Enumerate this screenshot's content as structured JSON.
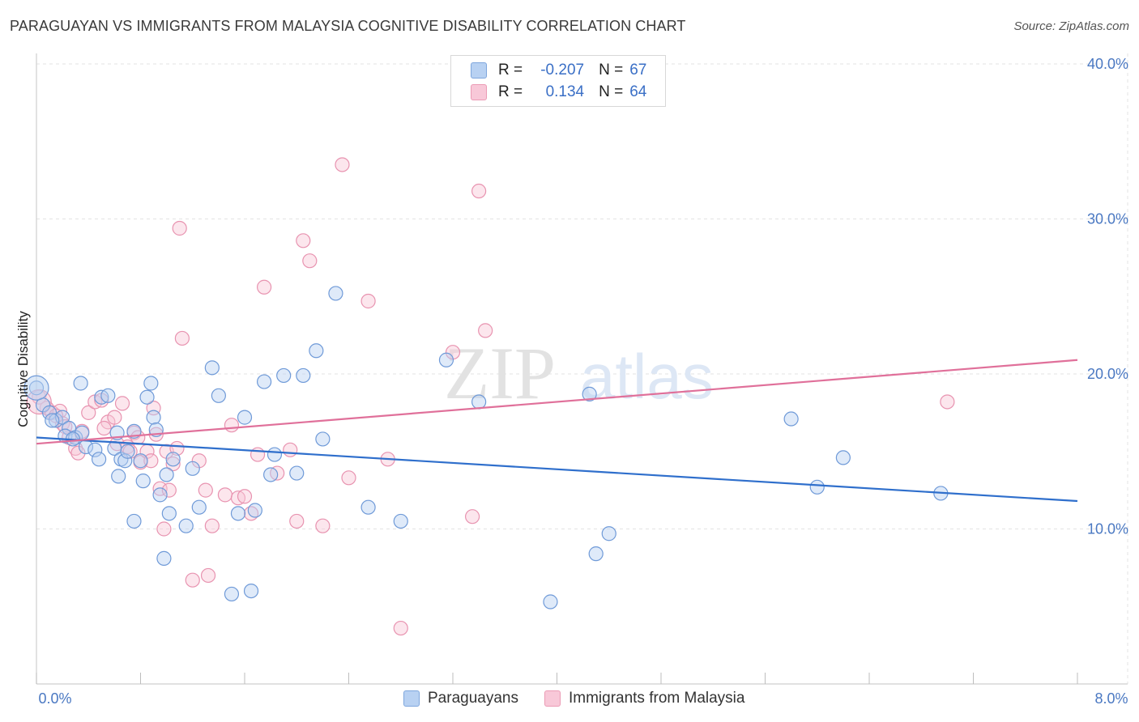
{
  "title": "PARAGUAYAN VS IMMIGRANTS FROM MALAYSIA COGNITIVE DISABILITY CORRELATION CHART",
  "source": "Source: ZipAtlas.com",
  "watermark": {
    "zip": "ZIP",
    "atlas": "atlas"
  },
  "legend": {
    "r_label": "R =",
    "n_label": "N =",
    "series": [
      {
        "name": "Paraguayans",
        "r": "-0.207",
        "n": "67"
      },
      {
        "name": "Immigrants from Malaysia",
        "r": "0.134",
        "n": "64"
      }
    ]
  },
  "colors": {
    "blue_fill": "#b8d1f2",
    "blue_stroke": "#6f9ad8",
    "blue_line": "#2f6fcc",
    "pink_fill": "#f8c8d8",
    "pink_stroke": "#e893b0",
    "pink_line": "#e0709a",
    "tick_label": "#4a78c2"
  },
  "chart_data": {
    "type": "scatter",
    "title": "PARAGUAYAN VS IMMIGRANTS FROM MALAYSIA COGNITIVE DISABILITY CORRELATION CHART",
    "xlabel": "",
    "ylabel": "Cognitive Disability",
    "xlim": [
      0,
      8
    ],
    "ylim": [
      0,
      40
    ],
    "x_tick_labels": [
      "0.0%",
      "8.0%"
    ],
    "y_ticks": [
      10,
      20,
      30,
      40
    ],
    "y_tick_labels": [
      "10.0%",
      "20.0%",
      "30.0%",
      "40.0%"
    ],
    "grid": true,
    "legend_position": "top-center",
    "series": [
      {
        "name": "Paraguayans",
        "color": "blue",
        "trend": {
          "x0": 0,
          "y0": 15.9,
          "x1": 8,
          "y1": 11.8
        },
        "points": [
          [
            0.0,
            19.1
          ],
          [
            0.05,
            18.0
          ],
          [
            0.1,
            17.5
          ],
          [
            0.15,
            17.0
          ],
          [
            0.2,
            17.2
          ],
          [
            0.25,
            16.5
          ],
          [
            0.22,
            16.0
          ],
          [
            0.3,
            15.9
          ],
          [
            0.35,
            16.2
          ],
          [
            0.28,
            15.8
          ],
          [
            0.38,
            15.3
          ],
          [
            0.45,
            15.1
          ],
          [
            0.5,
            18.5
          ],
          [
            0.55,
            18.6
          ],
          [
            0.6,
            15.2
          ],
          [
            0.62,
            16.2
          ],
          [
            0.65,
            14.5
          ],
          [
            0.68,
            14.4
          ],
          [
            0.7,
            15.0
          ],
          [
            0.75,
            16.3
          ],
          [
            0.8,
            14.4
          ],
          [
            0.85,
            18.5
          ],
          [
            0.88,
            19.4
          ],
          [
            0.9,
            17.2
          ],
          [
            0.92,
            16.4
          ],
          [
            0.48,
            14.5
          ],
          [
            0.34,
            19.4
          ],
          [
            0.63,
            13.4
          ],
          [
            0.82,
            13.1
          ],
          [
            0.95,
            12.2
          ],
          [
            0.75,
            10.5
          ],
          [
            1.0,
            13.5
          ],
          [
            1.02,
            11.0
          ],
          [
            1.05,
            14.5
          ],
          [
            0.98,
            8.1
          ],
          [
            1.2,
            13.9
          ],
          [
            1.25,
            11.4
          ],
          [
            1.15,
            10.2
          ],
          [
            1.35,
            20.4
          ],
          [
            1.4,
            18.6
          ],
          [
            1.5,
            5.8
          ],
          [
            1.55,
            11.0
          ],
          [
            1.6,
            17.2
          ],
          [
            1.65,
            6.0
          ],
          [
            1.68,
            11.2
          ],
          [
            1.75,
            19.5
          ],
          [
            1.8,
            13.5
          ],
          [
            1.83,
            14.8
          ],
          [
            1.9,
            19.9
          ],
          [
            2.05,
            19.9
          ],
          [
            2.0,
            13.6
          ],
          [
            2.15,
            21.5
          ],
          [
            2.2,
            15.8
          ],
          [
            2.3,
            25.2
          ],
          [
            2.55,
            11.4
          ],
          [
            2.8,
            10.5
          ],
          [
            3.15,
            20.9
          ],
          [
            3.4,
            18.2
          ],
          [
            3.95,
            5.3
          ],
          [
            4.25,
            18.7
          ],
          [
            4.3,
            8.4
          ],
          [
            4.4,
            9.7
          ],
          [
            5.8,
            17.1
          ],
          [
            6.0,
            12.7
          ],
          [
            6.2,
            14.6
          ],
          [
            6.95,
            12.3
          ],
          [
            0.12,
            17.0
          ]
        ]
      },
      {
        "name": "Immigrants from Malaysia",
        "color": "pink",
        "trend": {
          "x0": 0,
          "y0": 15.5,
          "x1": 8,
          "y1": 20.9
        },
        "points": [
          [
            0.02,
            18.5
          ],
          [
            0.08,
            17.8
          ],
          [
            0.12,
            17.5
          ],
          [
            0.18,
            17.6
          ],
          [
            0.2,
            16.8
          ],
          [
            0.25,
            15.9
          ],
          [
            0.3,
            15.2
          ],
          [
            0.35,
            16.3
          ],
          [
            0.4,
            17.5
          ],
          [
            0.45,
            18.2
          ],
          [
            0.5,
            18.3
          ],
          [
            0.55,
            16.9
          ],
          [
            0.6,
            17.2
          ],
          [
            0.62,
            15.5
          ],
          [
            0.66,
            18.1
          ],
          [
            0.7,
            15.3
          ],
          [
            0.72,
            15.0
          ],
          [
            0.75,
            16.2
          ],
          [
            0.78,
            15.9
          ],
          [
            0.8,
            14.3
          ],
          [
            0.85,
            15.0
          ],
          [
            0.88,
            14.4
          ],
          [
            0.9,
            17.8
          ],
          [
            0.92,
            16.1
          ],
          [
            0.95,
            12.6
          ],
          [
            0.98,
            10.0
          ],
          [
            1.0,
            15.0
          ],
          [
            1.02,
            12.5
          ],
          [
            1.05,
            14.2
          ],
          [
            1.08,
            15.2
          ],
          [
            1.1,
            29.4
          ],
          [
            1.12,
            22.3
          ],
          [
            1.2,
            6.7
          ],
          [
            1.25,
            14.4
          ],
          [
            1.3,
            12.5
          ],
          [
            1.32,
            7.0
          ],
          [
            1.35,
            10.2
          ],
          [
            1.45,
            12.2
          ],
          [
            1.5,
            16.7
          ],
          [
            1.55,
            12.0
          ],
          [
            1.6,
            12.1
          ],
          [
            1.65,
            11.0
          ],
          [
            1.7,
            14.8
          ],
          [
            1.75,
            25.6
          ],
          [
            1.85,
            13.6
          ],
          [
            1.95,
            15.1
          ],
          [
            2.0,
            10.5
          ],
          [
            2.05,
            28.6
          ],
          [
            2.1,
            27.3
          ],
          [
            2.2,
            10.2
          ],
          [
            2.35,
            33.5
          ],
          [
            2.4,
            13.3
          ],
          [
            2.55,
            24.7
          ],
          [
            2.7,
            14.5
          ],
          [
            2.8,
            3.6
          ],
          [
            3.2,
            21.4
          ],
          [
            3.35,
            10.8
          ],
          [
            3.4,
            31.8
          ],
          [
            3.45,
            22.8
          ],
          [
            7.0,
            18.2
          ],
          [
            0.32,
            14.9
          ],
          [
            0.22,
            16.6
          ],
          [
            0.52,
            16.5
          ],
          [
            0.15,
            17.3
          ]
        ]
      }
    ]
  }
}
